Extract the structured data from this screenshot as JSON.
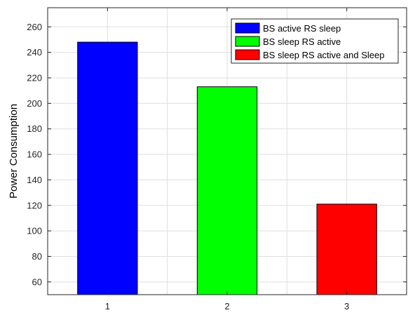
{
  "chart_data": {
    "type": "bar",
    "categories": [
      "1",
      "2",
      "3"
    ],
    "series": [
      {
        "name": "BS active RS sleep",
        "color": "#0000ff",
        "category": "1",
        "value": 248
      },
      {
        "name": "BS sleep RS active",
        "color": "#00ff00",
        "category": "2",
        "value": 213
      },
      {
        "name": "BS sleep RS active and Sleep",
        "color": "#ff0000",
        "category": "3",
        "value": 121
      }
    ],
    "ylabel": "Power Consumption",
    "xlabel": "",
    "ylim": [
      50,
      275
    ],
    "xlim": [
      0.5,
      3.5
    ],
    "yticks": [
      60,
      80,
      100,
      120,
      140,
      160,
      180,
      200,
      220,
      240,
      260
    ],
    "xticks": [
      "1",
      "2",
      "3"
    ],
    "grid": true,
    "legend_position": "top-right"
  }
}
